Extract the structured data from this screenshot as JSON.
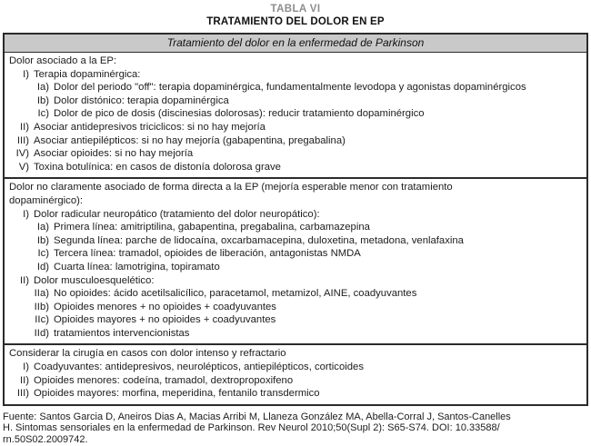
{
  "caption": {
    "number": "TABLA VI",
    "title": "TRATAMIENTO DEL DOLOR EN EP"
  },
  "table": {
    "header": "Tratamiento del dolor en la enfermedad de Parkinson",
    "sections": [
      {
        "lines": [
          {
            "indent": 0,
            "marker": "",
            "text": "Dolor asociado a la EP:"
          },
          {
            "indent": 1,
            "marker": "I)",
            "text": "Terapia dopaminérgica:"
          },
          {
            "indent": 2,
            "marker": "Ia)",
            "text": "Dolor del periodo \"off\": terapia dopaminérgica, fundamentalmente levodopa y agonistas dopaminérgicos"
          },
          {
            "indent": 2,
            "marker": "Ib)",
            "text": "Dolor distónico: terapia dopaminérgica"
          },
          {
            "indent": 2,
            "marker": "Ic)",
            "text": "Dolor de pico de dosis (discinesias dolorosas): reducir tratamiento dopaminérgico"
          },
          {
            "indent": 1,
            "marker": "II)",
            "text": "Asociar antidepresivos triciclicos: si no hay mejoría"
          },
          {
            "indent": 1,
            "marker": "III)",
            "text": "Asociar antiepilépticos: si no hay mejoría (gabapentina, pregabalina)"
          },
          {
            "indent": 1,
            "marker": "IV)",
            "text": "Asociar opioides: si no hay mejoría"
          },
          {
            "indent": 1,
            "marker": "V)",
            "text": "Toxina botulínica: en casos de distonía dolorosa grave"
          }
        ]
      },
      {
        "lines": [
          {
            "indent": 0,
            "marker": "",
            "text": "Dolor no claramente asociado de forma directa a la EP (mejoría esperable menor con tratamiento"
          },
          {
            "indent": 0,
            "marker": "",
            "text": "dopaminérgico):"
          },
          {
            "indent": 1,
            "marker": "I)",
            "text": "Dolor radicular neuropático (tratamiento del dolor neuropático):"
          },
          {
            "indent": 2,
            "marker": "Ia)",
            "text": "Primera línea: amitriptilina, gabapentina, pregabalina, carbamazepina"
          },
          {
            "indent": 2,
            "marker": "Ib)",
            "text": "Segunda línea: parche de lidocaína, oxcarbamacepina, duloxetina, metadona, venlafaxina"
          },
          {
            "indent": 2,
            "marker": "Ic)",
            "text": "Tercera línea: tramadol, opioides de liberación, antagonistas NMDA"
          },
          {
            "indent": 2,
            "marker": "Id)",
            "text": "Cuarta línea: lamotrigina, topiramato"
          },
          {
            "indent": 1,
            "marker": "II)",
            "text": "Dolor musculoesquelético:"
          },
          {
            "indent": 2,
            "marker": "IIa)",
            "text": "No opioides: ácido acetilsalicílico, paracetamol, metamizol, AINE, coadyuvantes"
          },
          {
            "indent": 2,
            "marker": "IIb)",
            "text": "Opioides menores + no opioides + coadyuvantes"
          },
          {
            "indent": 2,
            "marker": "IIc)",
            "text": "Opioides mayores + no opioides + coadyuvantes"
          },
          {
            "indent": 2,
            "marker": "IId)",
            "text": "tratamientos intervencionistas"
          }
        ]
      },
      {
        "lines": [
          {
            "indent": 0,
            "marker": "",
            "text": "Considerar la cirugía en casos con dolor intenso y refractario"
          },
          {
            "indent": 1,
            "marker": "I)",
            "text": "Coadyuvantes: antidepresivos, neurolépticos, antiepilépticos, corticoides"
          },
          {
            "indent": 1,
            "marker": "II)",
            "text": "Opioides menores: codeína, tramadol, dextropropoxifeno"
          },
          {
            "indent": 1,
            "marker": "III)",
            "text": "Opioides mayores: morfina, meperidina, fentanilo transdermico"
          }
        ]
      }
    ]
  },
  "footer": {
    "lines": [
      "Fuente: Santos Garcia D, Aneiros Dias A, Macias Arribi M, Llaneza González MA, Abella-Corral J, Santos-Canelles",
      "H. Sintomas sensoriales en la enfermedad de Parkinson. Rev Neurol 2010;50(Supl 2): S65-S74. DOI: 10.33588/",
      "rn.50S02.2009742."
    ]
  }
}
